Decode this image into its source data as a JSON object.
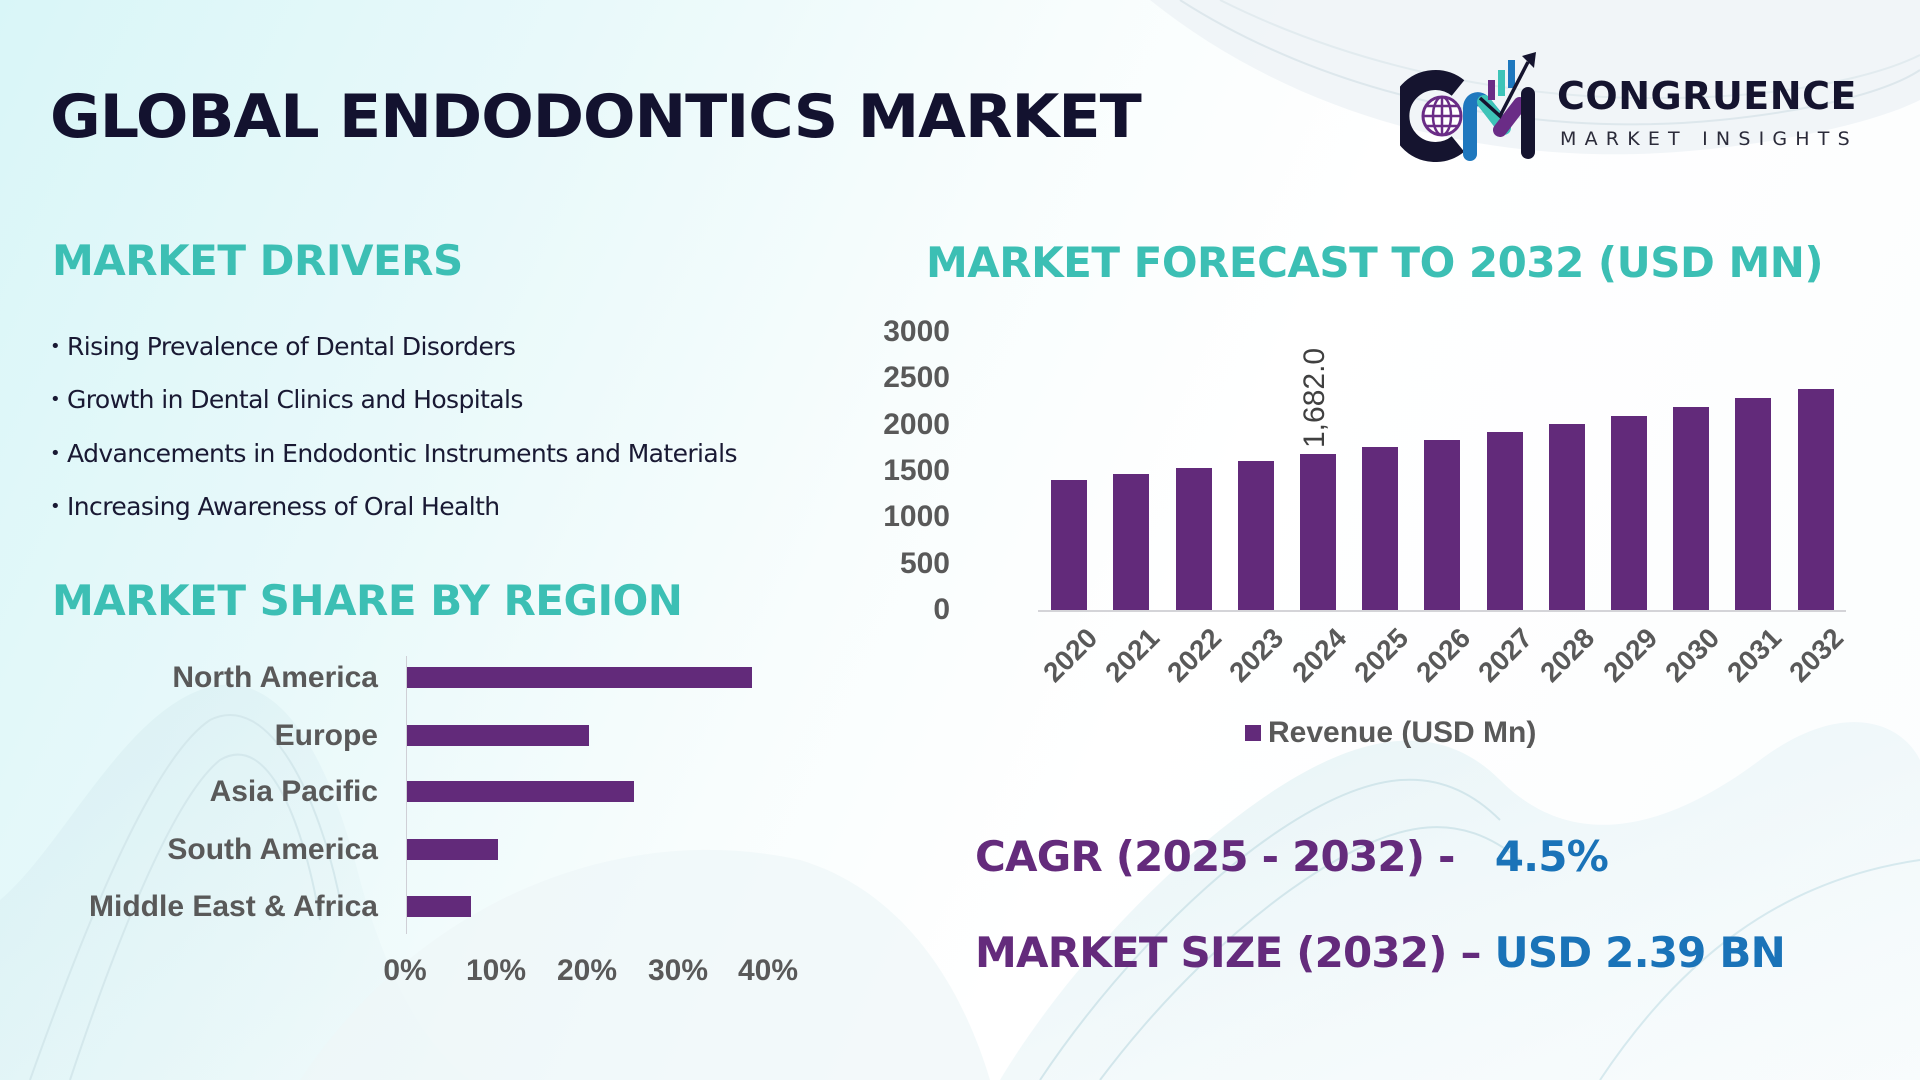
{
  "title": "GLOBAL ENDODONTICS MARKET",
  "logo": {
    "icon": "cm-logo-icon",
    "name": "CONGRUENCE",
    "tagline": "MARKET INSIGHTS"
  },
  "drivers": {
    "heading": "MARKET DRIVERS",
    "bullet": "•",
    "items": [
      "Rising Prevalence of Dental Disorders",
      "Growth in Dental Clinics and Hospitals",
      "Advancements in Endodontic Instruments and Materials",
      "Increasing Awareness of Oral Health"
    ]
  },
  "region": {
    "heading": "MARKET SHARE BY REGION"
  },
  "forecast": {
    "heading": "MARKET FORECAST TO 2032 (USD MN)"
  },
  "stats": {
    "cagr_label": "CAGR (2025 - 2032) -",
    "cagr_value": "4.5%",
    "size_label": "MARKET SIZE (2032) –",
    "size_value": "USD 2.39 BN"
  },
  "colors": {
    "title": "#13122f",
    "heading_teal": "#3cbfb4",
    "bar_purple": "#622a7a",
    "stat_label_purple": "#642b7c",
    "stat_value_blue": "#1a73b8",
    "axis_text_gray": "#595959"
  },
  "chart_data": [
    {
      "type": "bar",
      "orientation": "vertical",
      "title": "MARKET FORECAST TO 2032 (USD MN)",
      "categories": [
        "2020",
        "2021",
        "2022",
        "2023",
        "2024",
        "2025",
        "2026",
        "2027",
        "2028",
        "2029",
        "2030",
        "2031",
        "2032"
      ],
      "series": [
        {
          "name": "Revenue (USD Mn)",
          "values": [
            1402,
            1467,
            1532,
            1607,
            1682,
            1758,
            1834,
            1920,
            2006,
            2093,
            2190,
            2287,
            2390
          ]
        }
      ],
      "data_labels": [
        {
          "category": "2024",
          "text": "1,682.0"
        }
      ],
      "yticks": [
        "0",
        "500",
        "1000",
        "1500",
        "2000",
        "2500",
        "3000"
      ],
      "ylim": [
        0,
        3000
      ],
      "xlabel": "",
      "ylabel": "",
      "grid": false,
      "legend": {
        "position": "bottom",
        "entries": [
          "Revenue (USD Mn)"
        ]
      }
    },
    {
      "type": "bar",
      "orientation": "horizontal",
      "title": "MARKET SHARE BY REGION",
      "categories": [
        "North America",
        "Europe",
        "Asia Pacific",
        "South America",
        "Middle East & Africa"
      ],
      "values": [
        38,
        20,
        25,
        10,
        7
      ],
      "unit": "%",
      "xticks": [
        "0%",
        "10%",
        "20%",
        "30%",
        "40%"
      ],
      "xlim": [
        0,
        40
      ],
      "grid": false,
      "legend": null
    }
  ]
}
